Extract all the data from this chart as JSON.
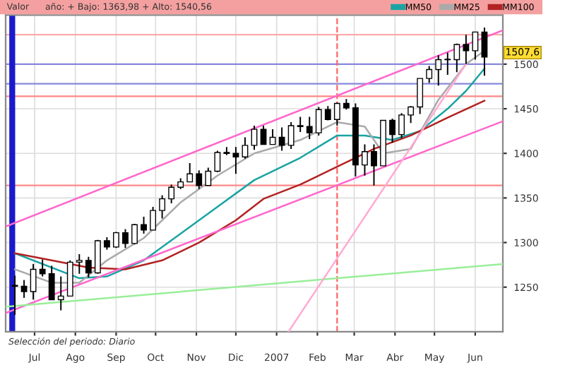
{
  "chart_data": {
    "type": "candlestick",
    "legend_title": "Valor",
    "annotations": [
      "año: + Bajo: 1363,98 + Alto: 1540,56",
      "Selección del periodo: Diario",
      {
        "text": "1507,6",
        "x": "2007-06-08",
        "y": 1507.6
      }
    ],
    "x": [
      "2006-06-16",
      "2006-06-23",
      "2006-06-30",
      "2006-07-07",
      "2006-07-14",
      "2006-07-21",
      "2006-07-28",
      "2006-08-04",
      "2006-08-11",
      "2006-08-18",
      "2006-08-25",
      "2006-09-01",
      "2006-09-08",
      "2006-09-15",
      "2006-09-22",
      "2006-09-29",
      "2006-10-06",
      "2006-10-13",
      "2006-10-20",
      "2006-10-27",
      "2006-11-03",
      "2006-11-10",
      "2006-11-17",
      "2006-11-24",
      "2006-12-01",
      "2006-12-08",
      "2006-12-15",
      "2006-12-22",
      "2006-12-29",
      "2007-01-05",
      "2007-01-12",
      "2007-01-19",
      "2007-01-26",
      "2007-02-02",
      "2007-02-09",
      "2007-02-16",
      "2007-02-23",
      "2007-03-02",
      "2007-03-09",
      "2007-03-16",
      "2007-03-23",
      "2007-03-30",
      "2007-04-06",
      "2007-04-13",
      "2007-04-20",
      "2007-04-27",
      "2007-05-04",
      "2007-05-11",
      "2007-05-18",
      "2007-05-25",
      "2007-06-01",
      "2007-06-08"
    ],
    "ohlc": [
      [
        1252,
        1263,
        1219,
        1251
      ],
      [
        1251,
        1258,
        1238,
        1245
      ],
      [
        1245,
        1276,
        1236,
        1270
      ],
      [
        1270,
        1281,
        1262,
        1265
      ],
      [
        1265,
        1274,
        1236,
        1236
      ],
      [
        1236,
        1262,
        1224,
        1240
      ],
      [
        1240,
        1280,
        1240,
        1278
      ],
      [
        1278,
        1287,
        1265,
        1280
      ],
      [
        1280,
        1284,
        1261,
        1266
      ],
      [
        1266,
        1303,
        1265,
        1302
      ],
      [
        1302,
        1306,
        1292,
        1295
      ],
      [
        1295,
        1312,
        1294,
        1311
      ],
      [
        1311,
        1315,
        1294,
        1299
      ],
      [
        1299,
        1321,
        1298,
        1320
      ],
      [
        1320,
        1329,
        1310,
        1314
      ],
      [
        1314,
        1340,
        1314,
        1336
      ],
      [
        1336,
        1353,
        1327,
        1349
      ],
      [
        1349,
        1365,
        1344,
        1362
      ],
      [
        1362,
        1372,
        1360,
        1368
      ],
      [
        1368,
        1389,
        1368,
        1377
      ],
      [
        1377,
        1381,
        1360,
        1364
      ],
      [
        1364,
        1384,
        1364,
        1380
      ],
      [
        1380,
        1403,
        1379,
        1401
      ],
      [
        1401,
        1407,
        1398,
        1400
      ],
      [
        1400,
        1407,
        1377,
        1396
      ],
      [
        1396,
        1418,
        1394,
        1409
      ],
      [
        1409,
        1431,
        1404,
        1427
      ],
      [
        1427,
        1431,
        1410,
        1410
      ],
      [
        1410,
        1427,
        1410,
        1418
      ],
      [
        1418,
        1429,
        1403,
        1409
      ],
      [
        1409,
        1435,
        1405,
        1431
      ],
      [
        1431,
        1441,
        1424,
        1430
      ],
      [
        1430,
        1441,
        1416,
        1423
      ],
      [
        1423,
        1452,
        1420,
        1449
      ],
      [
        1449,
        1453,
        1437,
        1438
      ],
      [
        1438,
        1457,
        1431,
        1456
      ],
      [
        1456,
        1461,
        1449,
        1451
      ],
      [
        1451,
        1456,
        1374,
        1387
      ],
      [
        1387,
        1410,
        1375,
        1402
      ],
      [
        1402,
        1410,
        1364,
        1386
      ],
      [
        1386,
        1437,
        1386,
        1437
      ],
      [
        1437,
        1439,
        1412,
        1421
      ],
      [
        1421,
        1445,
        1417,
        1443
      ],
      [
        1443,
        1453,
        1434,
        1452
      ],
      [
        1452,
        1484,
        1444,
        1484
      ],
      [
        1484,
        1498,
        1479,
        1494
      ],
      [
        1494,
        1510,
        1476,
        1505
      ],
      [
        1505,
        1513,
        1488,
        1505
      ],
      [
        1505,
        1523,
        1491,
        1522
      ],
      [
        1522,
        1533,
        1500,
        1515
      ],
      [
        1515,
        1536,
        1505,
        1536
      ],
      [
        1536,
        1541,
        1487,
        1508
      ]
    ],
    "series": [
      {
        "type": "line",
        "name": "MM50",
        "color": "#1aa3a3",
        "x": [
          "2006-06-16",
          "2006-08-04",
          "2006-08-25",
          "2006-09-22",
          "2006-10-20",
          "2006-11-17",
          "2006-12-15",
          "2007-01-19",
          "2007-02-16",
          "2007-03-09",
          "2007-03-30",
          "2007-04-20",
          "2007-05-11",
          "2007-05-25",
          "2007-06-08"
        ],
        "values": [
          1288,
          1260,
          1262,
          1280,
          1310,
          1340,
          1370,
          1395,
          1420,
          1420,
          1415,
          1425,
          1450,
          1470,
          1495
        ]
      },
      {
        "type": "line",
        "name": "MM25",
        "color": "#aaaaaa",
        "x": [
          "2006-06-16",
          "2006-07-14",
          "2006-08-04",
          "2006-08-25",
          "2006-09-22",
          "2006-10-20",
          "2006-11-17",
          "2006-12-15",
          "2007-01-19",
          "2007-02-16",
          "2007-03-09",
          "2007-03-23",
          "2007-04-13",
          "2007-05-04",
          "2007-05-25",
          "2007-06-08"
        ],
        "values": [
          1270,
          1255,
          1255,
          1280,
          1305,
          1345,
          1375,
          1400,
          1415,
          1435,
          1430,
          1400,
          1405,
          1460,
          1500,
          1515
        ]
      },
      {
        "type": "line",
        "name": "MM100",
        "color": "#b22222",
        "x": [
          "2006-06-16",
          "2006-07-14",
          "2006-08-11",
          "2006-09-08",
          "2006-10-06",
          "2006-11-03",
          "2006-12-01",
          "2006-12-22",
          "2007-01-19",
          "2007-02-16",
          "2007-03-16",
          "2007-04-13",
          "2007-05-11",
          "2007-06-08"
        ],
        "values": [
          1288,
          1280,
          1272,
          1270,
          1280,
          1300,
          1325,
          1349,
          1365,
          1385,
          1405,
          1420,
          1440,
          1459
        ]
      },
      {
        "type": "line",
        "color": "#ff66cc",
        "x": [
          "2006-06-09",
          "2007-06-22"
        ],
        "values": [
          1318,
          1538
        ]
      },
      {
        "type": "line",
        "color": "#ff66cc",
        "x": [
          "2006-06-09",
          "2007-06-22"
        ],
        "values": [
          1221,
          1436
        ]
      },
      {
        "type": "line",
        "color": "#99ee99",
        "x": [
          "2006-06-09",
          "2007-06-22"
        ],
        "values": [
          1228,
          1276
        ]
      },
      {
        "type": "line",
        "color": "#ffaad4",
        "x": [
          "2007-01-10",
          "2007-05-25"
        ],
        "values": [
          1200,
          1500
        ]
      }
    ],
    "ref_lines": [
      {
        "axis": "y",
        "value": 1533,
        "color": "#ffaaaa"
      },
      {
        "axis": "y",
        "value": 1500,
        "color": "#8888dd"
      },
      {
        "axis": "y",
        "value": 1478,
        "color": "#8888dd"
      },
      {
        "axis": "y",
        "value": 1464,
        "color": "#ff8888"
      },
      {
        "axis": "y",
        "value": 1364,
        "color": "#ff8888"
      },
      {
        "axis": "x",
        "value": "2006-06-14",
        "color": "#1a1acc"
      },
      {
        "axis": "x",
        "value": "2007-02-16",
        "color": "#ff6666",
        "line_style": "dashed"
      }
    ],
    "xlim": [
      "2006-06-09",
      "2007-06-22"
    ],
    "xticks": [
      {
        "value": "2006-07-01",
        "label": "Jul"
      },
      {
        "value": "2006-08-01",
        "label": "Ago"
      },
      {
        "value": "2006-09-01",
        "label": "Sep"
      },
      {
        "value": "2006-10-01",
        "label": "Oct"
      },
      {
        "value": "2006-11-01",
        "label": "Nov"
      },
      {
        "value": "2006-12-01",
        "label": "Dic"
      },
      {
        "value": "2007-01-01",
        "label": "2007"
      },
      {
        "value": "2007-02-01",
        "label": "Feb"
      },
      {
        "value": "2007-03-01",
        "label": "Mar"
      },
      {
        "value": "2007-04-01",
        "label": "Abr"
      },
      {
        "value": "2007-05-01",
        "label": "May"
      },
      {
        "value": "2007-06-01",
        "label": "Jun"
      }
    ],
    "ylim": [
      1200,
      1555
    ],
    "yticks": [
      1250,
      1300,
      1350,
      1400,
      1450,
      1500
    ],
    "grid": true,
    "legend": "top"
  }
}
